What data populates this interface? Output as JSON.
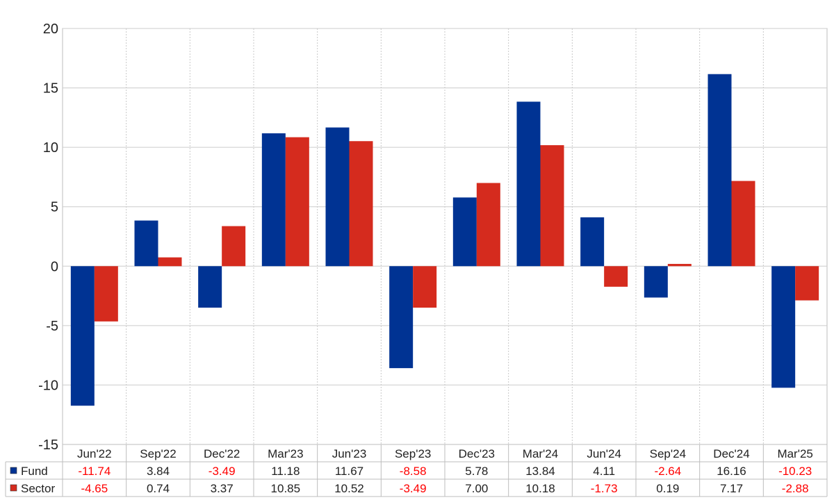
{
  "chart_data": {
    "type": "bar",
    "categories": [
      "Jun'22",
      "Sep'22",
      "Dec'22",
      "Mar'23",
      "Jun'23",
      "Sep'23",
      "Dec'23",
      "Mar'24",
      "Jun'24",
      "Sep'24",
      "Dec'24",
      "Mar'25"
    ],
    "series": [
      {
        "name": "Fund",
        "color": "#003393",
        "values": [
          -11.74,
          3.84,
          -3.49,
          11.18,
          11.67,
          -8.58,
          5.78,
          13.84,
          4.11,
          -2.64,
          16.16,
          -10.23
        ],
        "labels": [
          "-11.74",
          "3.84",
          "-3.49",
          "11.18",
          "11.67",
          "-8.58",
          "5.78",
          "13.84",
          "4.11",
          "-2.64",
          "16.16",
          "-10.23"
        ]
      },
      {
        "name": "Sector",
        "color": "#d52b1e",
        "values": [
          -4.65,
          0.74,
          3.37,
          10.85,
          10.52,
          -3.49,
          7.0,
          10.18,
          -1.73,
          0.19,
          7.17,
          -2.88
        ],
        "labels": [
          "-4.65",
          "0.74",
          "3.37",
          "10.85",
          "10.52",
          "-3.49",
          "7.00",
          "10.18",
          "-1.73",
          "0.19",
          "7.17",
          "-2.88"
        ]
      }
    ],
    "y_ticks": [
      "20",
      "15",
      "10",
      "5",
      "0",
      "-5",
      "-10",
      "-15"
    ],
    "ylim": [
      -15,
      20
    ],
    "grid": true,
    "legend": "data-table-left",
    "negative_value_color": "#ff0000",
    "positive_value_color": "#222222"
  }
}
